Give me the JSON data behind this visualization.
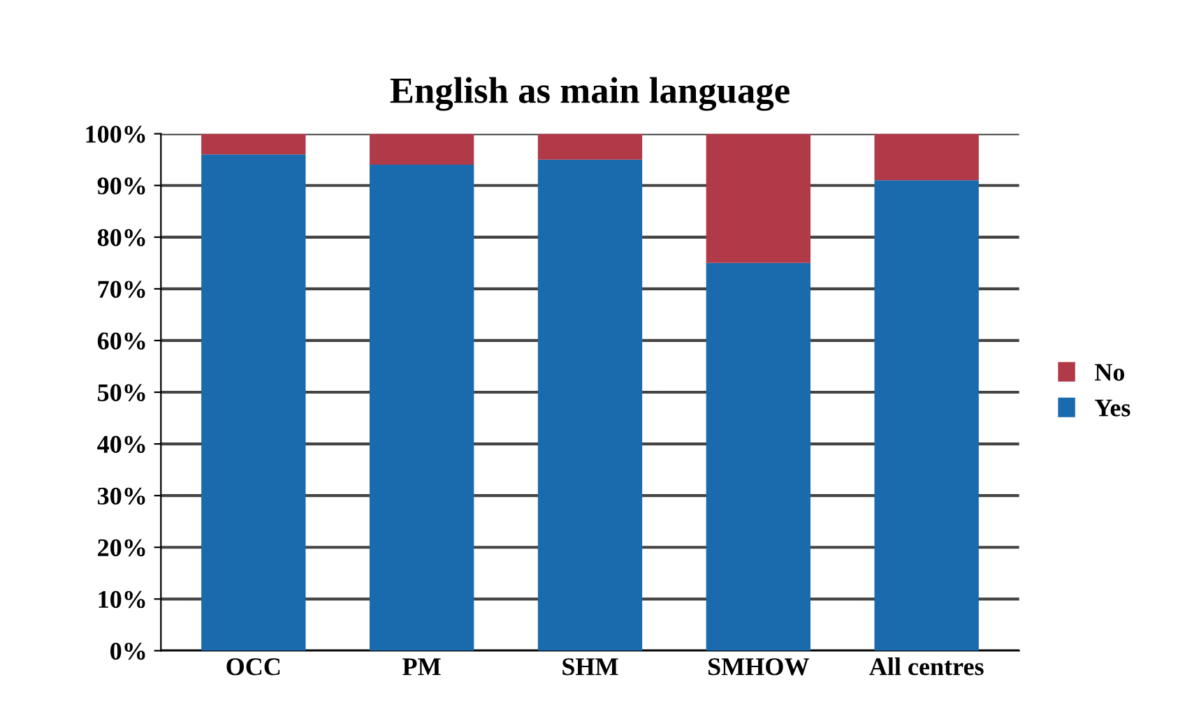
{
  "chart_data": {
    "type": "bar",
    "title": "English as main language",
    "categories": [
      "OCC",
      "PM",
      "SHM",
      "SMHOW",
      "All centres"
    ],
    "stacked": true,
    "series": [
      {
        "name": "Yes",
        "color": "#1a6aae",
        "values": [
          96,
          94,
          95,
          75,
          91
        ]
      },
      {
        "name": "No",
        "color": "#b03a48",
        "values": [
          4,
          6,
          5,
          25,
          9
        ]
      }
    ],
    "ylim": [
      0,
      100
    ],
    "yticks": [
      {
        "value": 0,
        "label": "0%"
      },
      {
        "value": 10,
        "label": "10%"
      },
      {
        "value": 20,
        "label": "20%"
      },
      {
        "value": 30,
        "label": "30%"
      },
      {
        "value": 40,
        "label": "40%"
      },
      {
        "value": 50,
        "label": "50%"
      },
      {
        "value": 60,
        "label": "60%"
      },
      {
        "value": 70,
        "label": "70%"
      },
      {
        "value": 80,
        "label": "80%"
      },
      {
        "value": 90,
        "label": "90%"
      },
      {
        "value": 100,
        "label": "100%"
      }
    ],
    "grid": "y",
    "legend": "right"
  }
}
